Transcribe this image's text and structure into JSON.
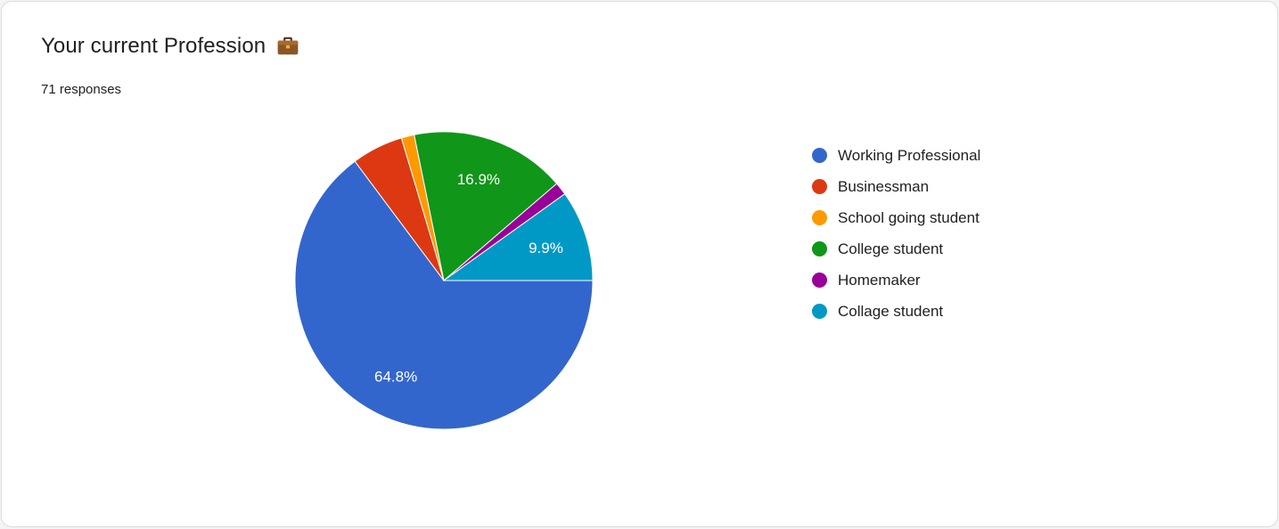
{
  "card": {
    "title": "Your current Profession",
    "responses_label": "71 responses"
  },
  "chart_data": {
    "type": "pie",
    "title": "Your current Profession",
    "categories": [
      "Working Professional",
      "Businessman",
      "School going student",
      "College student",
      "Homemaker",
      "Collage student"
    ],
    "values": [
      64.8,
      5.6,
      1.4,
      16.9,
      1.4,
      9.9
    ],
    "value_unit": "percent",
    "total_responses": 71,
    "visible_slice_labels": [
      "64.8%",
      "16.9%",
      "9.9%"
    ],
    "colors": [
      "#3366CC",
      "#DC3912",
      "#FF9900",
      "#109618",
      "#990099",
      "#0099C6"
    ],
    "start_angle_deg": 90,
    "label_min_pct": 9,
    "label_radius_ratio": 0.72,
    "legend_position": "right"
  },
  "legend": {
    "items": [
      {
        "label": "Working Professional",
        "color": "#3366CC"
      },
      {
        "label": "Businessman",
        "color": "#DC3912"
      },
      {
        "label": "School going student",
        "color": "#FF9900"
      },
      {
        "label": "College student",
        "color": "#109618"
      },
      {
        "label": "Homemaker",
        "color": "#990099"
      },
      {
        "label": "Collage student",
        "color": "#0099C6"
      }
    ]
  }
}
